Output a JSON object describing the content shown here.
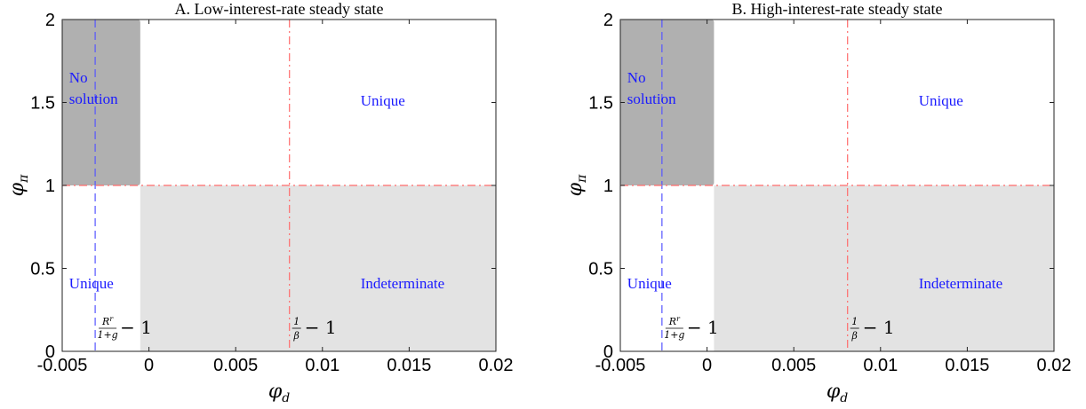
{
  "chart_data": [
    {
      "type": "heatmap",
      "panel_id": "A",
      "title": "A. Low-interest-rate steady state",
      "xlabel": "φ",
      "xlabel_sub": "d",
      "ylabel": "φ",
      "ylabel_sub": "π",
      "xlim": [
        -0.005,
        0.02
      ],
      "ylim": [
        0,
        2
      ],
      "xticks": [
        -0.005,
        0,
        0.005,
        0.01,
        0.015,
        0.02
      ],
      "xtick_labels": [
        "-0.005",
        "0",
        "0.005",
        "0.01",
        "0.015",
        "0.02"
      ],
      "yticks": [
        0,
        0.5,
        1,
        1.5,
        2
      ],
      "ytick_labels": [
        "0",
        "0.5",
        "1",
        "1.5",
        "2"
      ],
      "grid": false,
      "regions": [
        {
          "name": "No solution",
          "label_lines": [
            "No",
            "solution"
          ],
          "fill": "#b0b0b0",
          "x": [
            -0.005,
            -0.0005
          ],
          "y": [
            1,
            2
          ],
          "label_at": [
            -0.0046,
            1.62
          ]
        },
        {
          "name": "Indeterminate",
          "label_lines": [
            "Indeterminate"
          ],
          "fill": "#e3e3e3",
          "x": [
            -0.0005,
            0.02
          ],
          "y": [
            0,
            1
          ],
          "label_at": [
            0.0122,
            0.38
          ]
        },
        {
          "name": "Unique (upper)",
          "label_lines": [
            "Unique"
          ],
          "fill": "none",
          "label_at": [
            0.0122,
            1.48
          ]
        },
        {
          "name": "Unique (lower)",
          "label_lines": [
            "Unique"
          ],
          "fill": "none",
          "label_at": [
            -0.0046,
            0.38
          ]
        }
      ],
      "reference_lines": [
        {
          "orientation": "vertical",
          "value": -0.0031,
          "color": "#5555ff",
          "style": "dashed",
          "label": "R^r/(1+g) − 1"
        },
        {
          "orientation": "vertical",
          "value": 0.0081,
          "color": "#ff6b6b",
          "style": "dashdot",
          "label": "1/β − 1"
        },
        {
          "orientation": "horizontal",
          "value": 1,
          "color": "#ff6b6b",
          "style": "dashdot",
          "label": ""
        }
      ],
      "annotations": {
        "rr": {
          "num": "R",
          "num_sup": "r",
          "den": "1+g",
          "tail": "− 1"
        },
        "beta": {
          "num": "1",
          "den": "β",
          "tail": "− 1"
        }
      }
    },
    {
      "type": "heatmap",
      "panel_id": "B",
      "title": "B. High-interest-rate steady state",
      "xlabel": "φ",
      "xlabel_sub": "d",
      "ylabel": "φ",
      "ylabel_sub": "π",
      "xlim": [
        -0.005,
        0.02
      ],
      "ylim": [
        0,
        2
      ],
      "xticks": [
        -0.005,
        0,
        0.005,
        0.01,
        0.015,
        0.02
      ],
      "xtick_labels": [
        "-0.005",
        "0",
        "0.005",
        "0.01",
        "0.015",
        "0.02"
      ],
      "yticks": [
        0,
        0.5,
        1,
        1.5,
        2
      ],
      "ytick_labels": [
        "0",
        "0.5",
        "1",
        "1.5",
        "2"
      ],
      "grid": false,
      "regions": [
        {
          "name": "No solution",
          "label_lines": [
            "No",
            "solution"
          ],
          "fill": "#b0b0b0",
          "x": [
            -0.005,
            0.0004
          ],
          "y": [
            1,
            2
          ],
          "label_at": [
            -0.0046,
            1.62
          ]
        },
        {
          "name": "Indeterminate",
          "label_lines": [
            "Indeterminate"
          ],
          "fill": "#e3e3e3",
          "x": [
            0.0004,
            0.02
          ],
          "y": [
            0,
            1
          ],
          "label_at": [
            0.0122,
            0.38
          ]
        },
        {
          "name": "Unique (upper)",
          "label_lines": [
            "Unique"
          ],
          "fill": "none",
          "label_at": [
            0.0122,
            1.48
          ]
        },
        {
          "name": "Unique (lower)",
          "label_lines": [
            "Unique"
          ],
          "fill": "none",
          "label_at": [
            -0.0046,
            0.38
          ]
        }
      ],
      "reference_lines": [
        {
          "orientation": "vertical",
          "value": -0.0026,
          "color": "#5555ff",
          "style": "dashed",
          "label": "R^r/(1+g) − 1"
        },
        {
          "orientation": "vertical",
          "value": 0.0081,
          "color": "#ff6b6b",
          "style": "dashdot",
          "label": "1/β − 1"
        },
        {
          "orientation": "horizontal",
          "value": 1,
          "color": "#ff6b6b",
          "style": "dashdot",
          "label": ""
        }
      ],
      "annotations": {
        "rr": {
          "num": "R",
          "num_sup": "r",
          "den": "1+g",
          "tail": "− 1"
        },
        "beta": {
          "num": "1",
          "den": "β",
          "tail": "− 1"
        }
      }
    }
  ]
}
